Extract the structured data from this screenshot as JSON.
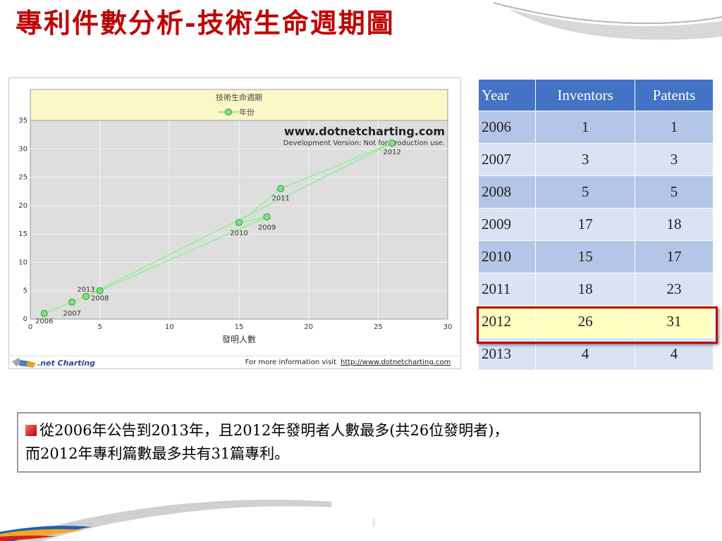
{
  "slide_title": "專利件數分析-技術生命週期圖",
  "chart_data": {
    "type": "scatter",
    "title": "技術生命週期",
    "legend_entry": "年份",
    "legend_placement": "top-center",
    "xlabel": "發明人數",
    "ylabel": "",
    "xlim": [
      0,
      30
    ],
    "ylim": [
      0,
      35
    ],
    "x_ticks": [
      0,
      5,
      10,
      15,
      20,
      25,
      30
    ],
    "y_ticks": [
      0,
      5,
      10,
      15,
      20,
      25,
      30,
      35
    ],
    "grid": true,
    "points": [
      {
        "label": "2006",
        "x": 1,
        "y": 1
      },
      {
        "label": "2007",
        "x": 3,
        "y": 3
      },
      {
        "label": "2008",
        "x": 5,
        "y": 5
      },
      {
        "label": "2009",
        "x": 17,
        "y": 18
      },
      {
        "label": "2010",
        "x": 15,
        "y": 17
      },
      {
        "label": "2011",
        "x": 18,
        "y": 23
      },
      {
        "label": "2012",
        "x": 26,
        "y": 31
      },
      {
        "label": "2013",
        "x": 4,
        "y": 4
      }
    ],
    "watermark_title": "www.dotnetcharting.com",
    "watermark_sub": "Development Version: Not for production use.",
    "footer_brand": ".net Charting",
    "footer_info": "For more information visit",
    "footer_link": "http://www.dotnetcharting.com",
    "colors": {
      "line": "#90ee90",
      "marker": "#7ee27e",
      "marker_edge": "#3a9a3a",
      "legend_bg": "#fbf8c8",
      "plot_bg": "#dedede"
    }
  },
  "table": {
    "headers": [
      "Year",
      "Inventors",
      "Patents"
    ],
    "rows": [
      [
        "2006",
        "1",
        "1"
      ],
      [
        "2007",
        "3",
        "3"
      ],
      [
        "2008",
        "5",
        "5"
      ],
      [
        "2009",
        "17",
        "18"
      ],
      [
        "2010",
        "15",
        "17"
      ],
      [
        "2011",
        "18",
        "23"
      ],
      [
        "2012",
        "26",
        "31"
      ],
      [
        "2013",
        "4",
        "4"
      ]
    ],
    "highlight_row": "2012"
  },
  "note": {
    "line1": "從2006年公告到2013年，且2012年發明者人數最多(共26位發明者)，",
    "line2": "而2012年專利篇數最多共有31篇專利。"
  }
}
